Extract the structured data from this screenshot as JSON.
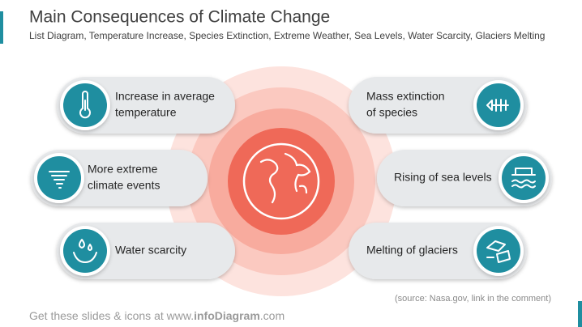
{
  "header": {
    "title": "Main Consequences of Climate Change",
    "subtitle": "List Diagram, Temperature Increase, Species Extinction, Extreme Weather, Sea Levels, Water Scarcity, Glaciers Melting"
  },
  "items": [
    {
      "lines": [
        "Increase in average",
        "temperature"
      ]
    },
    {
      "lines": [
        "More extreme",
        "climate events"
      ]
    },
    {
      "lines": [
        "Water scarcity"
      ]
    },
    {
      "lines": [
        "Mass extinction",
        "of species"
      ]
    },
    {
      "lines": [
        "Rising of sea levels"
      ]
    },
    {
      "lines": [
        "Melting of glaciers"
      ]
    }
  ],
  "source": "(source:  Nasa.gov, link in the comment)",
  "footer": {
    "parts": [
      "Get these slides & icons at www.",
      "infoDiagram",
      ".com"
    ]
  }
}
